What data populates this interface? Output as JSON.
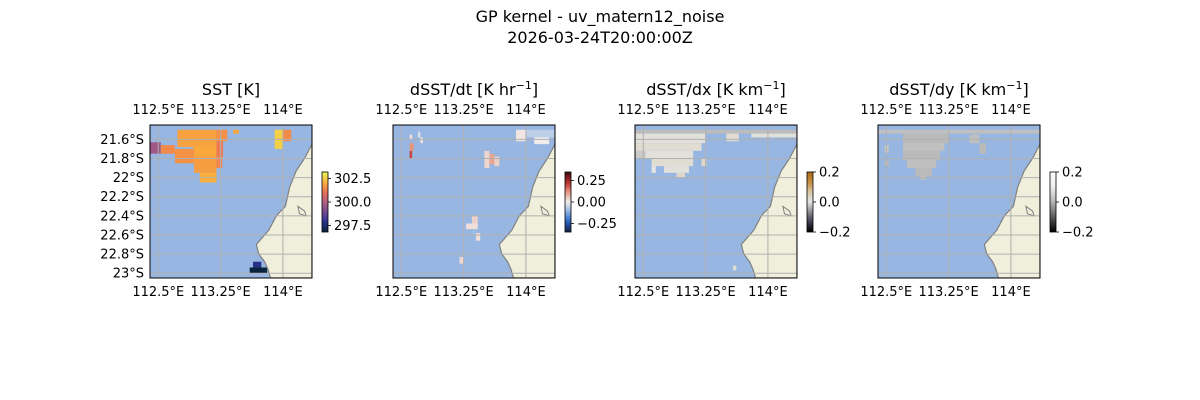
{
  "figure": {
    "title": "GP kernel - uv_matern12_noise",
    "timestamp": "2026-03-24T20:00:00Z"
  },
  "colors": {
    "ocean": "#97b6e1",
    "land": "#efefdb",
    "coast": "#808080",
    "grid": "#b0b0b0"
  },
  "chart_data": [
    {
      "type": "heatmap",
      "name": "sst",
      "title": "SST [K]",
      "title_sup": "",
      "title_tail": "",
      "lon_range": [
        112.4,
        114.35
      ],
      "lat_range": [
        -23.05,
        -21.45
      ],
      "lon_ticks": [
        "112.5°E",
        "113.25°E",
        "114°E"
      ],
      "lon_tick_values": [
        112.5,
        113.25,
        114.0
      ],
      "show_lat_ticks": true,
      "lat_ticks": [
        "21.6°S",
        "21.8°S",
        "22°S",
        "22.2°S",
        "22.4°S",
        "22.6°S",
        "22.8°S",
        "23°S"
      ],
      "lat_tick_values": [
        -21.6,
        -21.8,
        -22.0,
        -22.2,
        -22.4,
        -22.6,
        -22.8,
        -23.0
      ],
      "colorbar": {
        "colormap": "thermal",
        "range": [
          296.8,
          303.2
        ],
        "ticks": [
          "302.5",
          "300.0",
          "297.5"
        ],
        "tick_values": [
          302.5,
          300.0,
          297.5
        ]
      },
      "cells": [
        {
          "lon_range": [
            112.73,
            113.2
          ],
          "lat_range": [
            -21.68,
            -21.5
          ],
          "value": 301.9
        },
        {
          "lon_range": [
            112.92,
            113.2
          ],
          "lat_range": [
            -21.78,
            -21.68
          ],
          "value": 302.0
        },
        {
          "lon_range": [
            112.4,
            112.53
          ],
          "lat_range": [
            -21.75,
            -21.63
          ],
          "value": 299.7
        },
        {
          "lon_range": [
            112.53,
            112.7
          ],
          "lat_range": [
            -21.75,
            -21.66
          ],
          "value": 301.5
        },
        {
          "lon_range": [
            112.7,
            112.93
          ],
          "lat_range": [
            -21.85,
            -21.7
          ],
          "value": 301.6
        },
        {
          "lon_range": [
            112.93,
            113.2
          ],
          "lat_range": [
            -21.95,
            -21.78
          ],
          "value": 301.8
        },
        {
          "lon_range": [
            113.0,
            113.2
          ],
          "lat_range": [
            -22.05,
            -21.95
          ],
          "value": 302.1
        },
        {
          "lon_range": [
            113.2,
            113.33
          ],
          "lat_range": [
            -21.62,
            -21.5
          ],
          "value": 301.6
        },
        {
          "lon_range": [
            113.2,
            113.28
          ],
          "lat_range": [
            -21.78,
            -21.62
          ],
          "value": 301.2
        },
        {
          "lon_range": [
            113.2,
            113.27
          ],
          "lat_range": [
            -21.9,
            -21.78
          ],
          "value": 301.4
        },
        {
          "lon_range": [
            113.4,
            113.47
          ],
          "lat_range": [
            -21.54,
            -21.5
          ],
          "value": 302.0
        },
        {
          "lon_range": [
            113.9,
            114.0
          ],
          "lat_range": [
            -21.7,
            -21.5
          ],
          "value": 302.6
        },
        {
          "lon_range": [
            114.0,
            114.1
          ],
          "lat_range": [
            -21.62,
            -21.5
          ],
          "value": 301.5
        },
        {
          "lon_range": [
            113.64,
            113.74
          ],
          "lat_range": [
            -22.94,
            -22.88
          ],
          "value": 297.7
        },
        {
          "lon_range": [
            113.6,
            113.81
          ],
          "lat_range": [
            -23.0,
            -22.94
          ],
          "value": 296.9
        }
      ]
    },
    {
      "type": "heatmap",
      "name": "dsst-dt",
      "title": "dSST/dt [K hr",
      "title_sup": "−1",
      "title_tail": "]",
      "lon_range": [
        112.4,
        114.35
      ],
      "lat_range": [
        -23.05,
        -21.45
      ],
      "lon_ticks": [
        "112.5°E",
        "113.25°E",
        "114°E"
      ],
      "lon_tick_values": [
        112.5,
        113.25,
        114.0
      ],
      "show_lat_ticks": false,
      "lat_tick_values": [
        -21.6,
        -21.8,
        -22.0,
        -22.2,
        -22.4,
        -22.6,
        -22.8,
        -23.0
      ],
      "colorbar": {
        "colormap": "balance",
        "range": [
          -0.35,
          0.35
        ],
        "ticks": [
          "0.25",
          "0.00",
          "−0.25"
        ],
        "tick_values": [
          0.25,
          0.0,
          -0.25
        ]
      },
      "cells": [
        {
          "lon_range": [
            112.6,
            112.63
          ],
          "lat_range": [
            -21.6,
            -21.55
          ],
          "value": 0.02
        },
        {
          "lon_range": [
            112.6,
            112.65
          ],
          "lat_range": [
            -21.72,
            -21.64
          ],
          "value": 0.12
        },
        {
          "lon_range": [
            112.6,
            112.63
          ],
          "lat_range": [
            -21.8,
            -21.72
          ],
          "value": 0.2
        },
        {
          "lon_range": [
            112.7,
            112.73
          ],
          "lat_range": [
            -21.58,
            -21.52
          ],
          "value": -0.03
        },
        {
          "lon_range": [
            112.73,
            112.76
          ],
          "lat_range": [
            -21.64,
            -21.58
          ],
          "value": 0.01
        },
        {
          "lon_range": [
            113.5,
            113.56
          ],
          "lat_range": [
            -21.9,
            -21.72
          ],
          "value": 0.03
        },
        {
          "lon_range": [
            113.56,
            113.62
          ],
          "lat_range": [
            -21.86,
            -21.75
          ],
          "value": 0.1
        },
        {
          "lon_range": [
            113.62,
            113.68
          ],
          "lat_range": [
            -21.88,
            -21.78
          ],
          "value": 0.04
        },
        {
          "lon_range": [
            113.88,
            114.0
          ],
          "lat_range": [
            -21.62,
            -21.5
          ],
          "value": 0.01
        },
        {
          "lon_range": [
            114.0,
            114.35
          ],
          "lat_range": [
            -21.58,
            -21.5
          ],
          "value": -0.06
        },
        {
          "lon_range": [
            114.1,
            114.28
          ],
          "lat_range": [
            -21.65,
            -21.58
          ],
          "value": 0.0
        },
        {
          "lon_range": [
            113.35,
            113.42
          ],
          "lat_range": [
            -22.48,
            -22.4
          ],
          "value": 0.04
        },
        {
          "lon_range": [
            113.28,
            113.42
          ],
          "lat_range": [
            -22.54,
            -22.48
          ],
          "value": 0.02
        },
        {
          "lon_range": [
            113.35,
            113.4
          ],
          "lat_range": [
            -22.61,
            -22.54
          ],
          "value": -0.1
        },
        {
          "lon_range": [
            113.4,
            113.45
          ],
          "lat_range": [
            -22.66,
            -22.58
          ],
          "value": 0.02
        },
        {
          "lon_range": [
            113.2,
            113.25
          ],
          "lat_range": [
            -22.9,
            -22.83
          ],
          "value": 0.03
        }
      ]
    },
    {
      "type": "heatmap",
      "name": "dsst-dx",
      "title": "dSST/dx [K km",
      "title_sup": "−1",
      "title_tail": "]",
      "lon_range": [
        112.4,
        114.35
      ],
      "lat_range": [
        -23.05,
        -21.45
      ],
      "lon_ticks": [
        "112.5°E",
        "113.25°E",
        "114°E"
      ],
      "lon_tick_values": [
        112.5,
        113.25,
        114.0
      ],
      "show_lat_ticks": false,
      "lat_tick_values": [
        -21.6,
        -21.8,
        -22.0,
        -22.2,
        -22.4,
        -22.6,
        -22.8,
        -23.0
      ],
      "colorbar": {
        "colormap": "grayvir",
        "range": [
          -0.2,
          0.2
        ],
        "ticks": [
          "0.2",
          "0.0",
          "−0.2"
        ],
        "tick_values": [
          0.2,
          0.0,
          -0.2
        ]
      },
      "cells": [
        {
          "lon_range": [
            112.4,
            114.35
          ],
          "lat_range": [
            -21.54,
            -21.5
          ],
          "value": -0.03
        },
        {
          "lon_range": [
            112.4,
            113.25
          ],
          "lat_range": [
            -21.64,
            -21.54
          ],
          "value": 0.01
        },
        {
          "lon_range": [
            112.4,
            113.2
          ],
          "lat_range": [
            -21.72,
            -21.64
          ],
          "value": 0.02
        },
        {
          "lon_range": [
            112.4,
            113.1
          ],
          "lat_range": [
            -21.8,
            -21.72
          ],
          "value": 0.01
        },
        {
          "lon_range": [
            112.6,
            113.1
          ],
          "lat_range": [
            -21.88,
            -21.8
          ],
          "value": 0.02
        },
        {
          "lon_range": [
            112.75,
            113.05
          ],
          "lat_range": [
            -21.95,
            -21.88
          ],
          "value": 0.01
        },
        {
          "lon_range": [
            112.9,
            113.0
          ],
          "lat_range": [
            -22.0,
            -21.95
          ],
          "value": 0.03
        },
        {
          "lon_range": [
            112.4,
            112.53
          ],
          "lat_range": [
            -21.8,
            -21.72
          ],
          "value": -0.02
        },
        {
          "lon_range": [
            113.5,
            113.65
          ],
          "lat_range": [
            -21.62,
            -21.54
          ],
          "value": 0.02
        },
        {
          "lon_range": [
            113.8,
            114.35
          ],
          "lat_range": [
            -21.58,
            -21.54
          ],
          "value": 0.01
        },
        {
          "lon_range": [
            112.6,
            112.65
          ],
          "lat_range": [
            -21.95,
            -21.88
          ],
          "value": 0.0
        },
        {
          "lon_range": [
            113.2,
            113.26
          ],
          "lat_range": [
            -21.88,
            -21.8
          ],
          "value": 0.03
        },
        {
          "lon_range": [
            113.58,
            113.62
          ],
          "lat_range": [
            -22.97,
            -22.92
          ],
          "value": 0.02
        }
      ]
    },
    {
      "type": "heatmap",
      "name": "dsst-dy",
      "title": "dSST/dy [K km",
      "title_sup": "−1",
      "title_tail": "]",
      "lon_range": [
        112.4,
        114.35
      ],
      "lat_range": [
        -23.05,
        -21.45
      ],
      "lon_ticks": [
        "112.5°E",
        "113.25°E",
        "114°E"
      ],
      "lon_tick_values": [
        112.5,
        113.25,
        114.0
      ],
      "show_lat_ticks": false,
      "lat_tick_values": [
        -21.6,
        -21.8,
        -22.0,
        -22.2,
        -22.4,
        -22.6,
        -22.8,
        -23.0
      ],
      "colorbar": {
        "colormap": "graybw",
        "range": [
          -0.2,
          0.2
        ],
        "ticks": [
          "0.2",
          "0.0",
          "−0.2"
        ],
        "tick_values": [
          0.2,
          0.0,
          -0.2
        ]
      },
      "cells": [
        {
          "lon_range": [
            112.4,
            114.35
          ],
          "lat_range": [
            -21.54,
            -21.5
          ],
          "value": 0.02
        },
        {
          "lon_range": [
            112.7,
            113.25
          ],
          "lat_range": [
            -21.64,
            -21.54
          ],
          "value": 0.01
        },
        {
          "lon_range": [
            112.7,
            113.2
          ],
          "lat_range": [
            -21.72,
            -21.64
          ],
          "value": 0.02
        },
        {
          "lon_range": [
            112.7,
            113.15
          ],
          "lat_range": [
            -21.82,
            -21.72
          ],
          "value": 0.01
        },
        {
          "lon_range": [
            112.75,
            113.1
          ],
          "lat_range": [
            -21.9,
            -21.82
          ],
          "value": 0.02
        },
        {
          "lon_range": [
            112.85,
            113.05
          ],
          "lat_range": [
            -21.98,
            -21.9
          ],
          "value": 0.01
        },
        {
          "lon_range": [
            112.9,
            112.98
          ],
          "lat_range": [
            -22.02,
            -21.98
          ],
          "value": 0.02
        },
        {
          "lon_range": [
            112.48,
            112.53
          ],
          "lat_range": [
            -21.74,
            -21.66
          ],
          "value": 0.03
        },
        {
          "lon_range": [
            112.48,
            112.53
          ],
          "lat_range": [
            -21.88,
            -21.82
          ],
          "value": 0.01
        },
        {
          "lon_range": [
            113.5,
            113.62
          ],
          "lat_range": [
            -21.64,
            -21.55
          ],
          "value": 0.02
        },
        {
          "lon_range": [
            113.62,
            113.7
          ],
          "lat_range": [
            -21.75,
            -21.64
          ],
          "value": 0.01
        }
      ]
    }
  ]
}
